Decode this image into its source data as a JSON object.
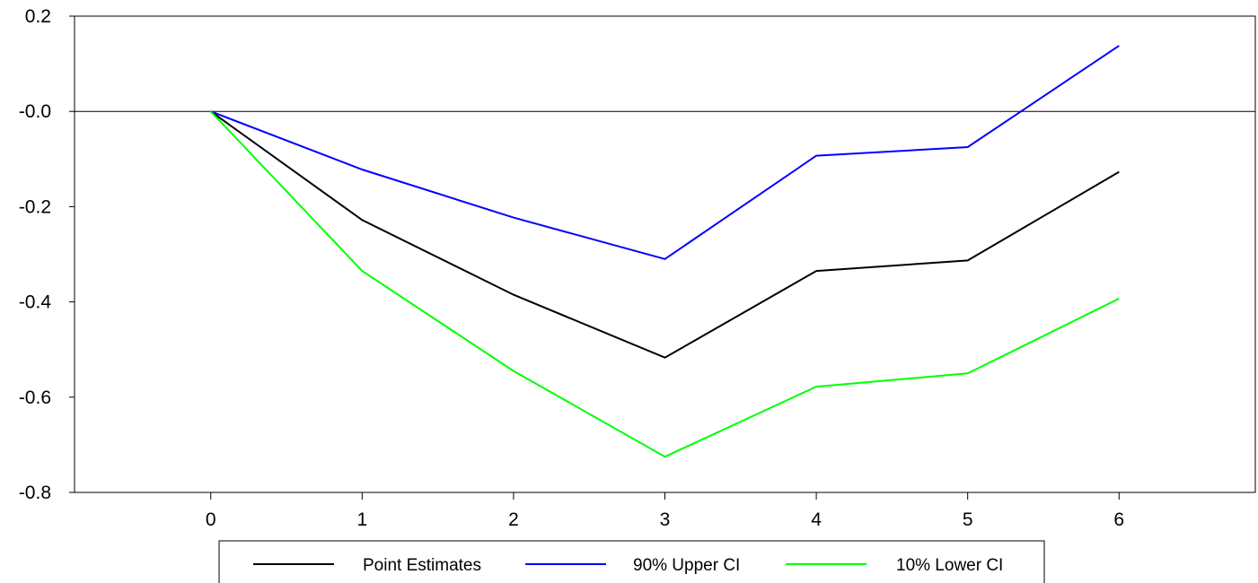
{
  "chart_data": {
    "type": "line",
    "x": [
      0,
      1,
      2,
      3,
      4,
      5,
      6
    ],
    "xticks": [
      "0",
      "1",
      "2",
      "3",
      "4",
      "5",
      "6"
    ],
    "xlim": [
      -0.9,
      6.9
    ],
    "ylim": [
      -0.8,
      0.2
    ],
    "yticks": [
      {
        "value": 0.2,
        "label": "0.2"
      },
      {
        "value": 0.0,
        "label": "-0.0"
      },
      {
        "value": -0.2,
        "label": "-0.2"
      },
      {
        "value": -0.4,
        "label": "-0.4"
      },
      {
        "value": -0.6,
        "label": "-0.6"
      },
      {
        "value": -0.8,
        "label": "-0.8"
      }
    ],
    "zero_line": true,
    "grid": false,
    "legend_position": "bottom",
    "series": [
      {
        "name": "Point Estimates",
        "color": "#000000",
        "values": [
          0.0,
          -0.228,
          -0.385,
          -0.517,
          -0.335,
          -0.313,
          -0.127
        ]
      },
      {
        "name": "90% Upper CI",
        "color": "#0000ff",
        "values": [
          0.0,
          -0.122,
          -0.223,
          -0.31,
          -0.093,
          -0.075,
          0.138
        ]
      },
      {
        "name": "10% Lower CI",
        "color": "#00ff00",
        "values": [
          0.0,
          -0.335,
          -0.545,
          -0.725,
          -0.578,
          -0.55,
          -0.393
        ]
      }
    ]
  }
}
